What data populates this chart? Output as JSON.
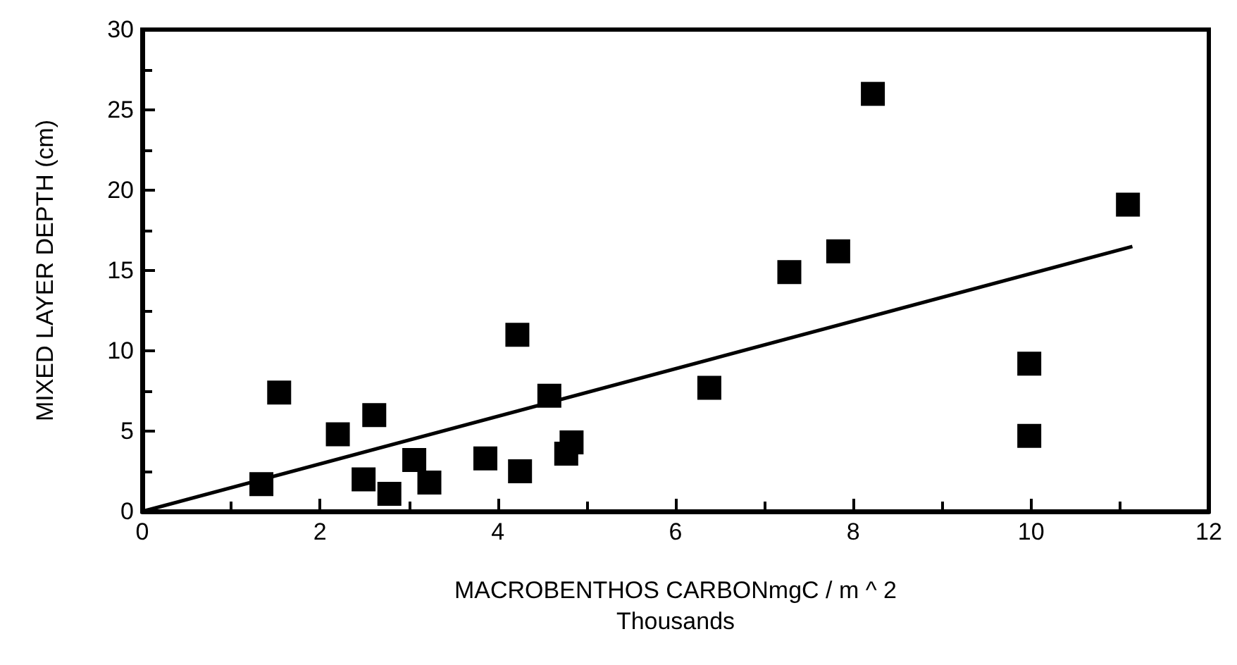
{
  "chart_data": {
    "type": "scatter",
    "xlabel": "MACROBENTHOS CARBONmgC / m ^ 2\nThousands",
    "ylabel": "MIXED LAYER DEPTH (cm)",
    "marker": "square",
    "grid": false,
    "xlim": [
      0,
      12
    ],
    "xticks": [
      0,
      2,
      4,
      6,
      8,
      10,
      12
    ],
    "ylim": [
      0,
      30
    ],
    "yticks": [
      0,
      5,
      10,
      15,
      20,
      25,
      30
    ],
    "series": [
      {
        "color": "#000000",
        "x": [
          1.34,
          1.54,
          2.2,
          2.61,
          2.49,
          2.78,
          3.06,
          3.23,
          3.86,
          4.22,
          4.25,
          4.58,
          4.83,
          4.77,
          6.38,
          7.28,
          7.83,
          8.22,
          11.09,
          9.98,
          9.98
        ],
        "values": [
          1.7,
          7.4,
          4.8,
          6.0,
          2.0,
          1.1,
          3.2,
          1.8,
          3.3,
          11.0,
          2.5,
          7.2,
          4.3,
          3.6,
          7.7,
          14.9,
          16.2,
          26.0,
          19.1,
          9.2,
          4.7
        ]
      },
      {
        "type": "line",
        "marker": "none",
        "line_style": "solid",
        "color": "#000000",
        "x": [
          0,
          11.14
        ],
        "values": [
          0,
          16.5
        ]
      }
    ]
  }
}
